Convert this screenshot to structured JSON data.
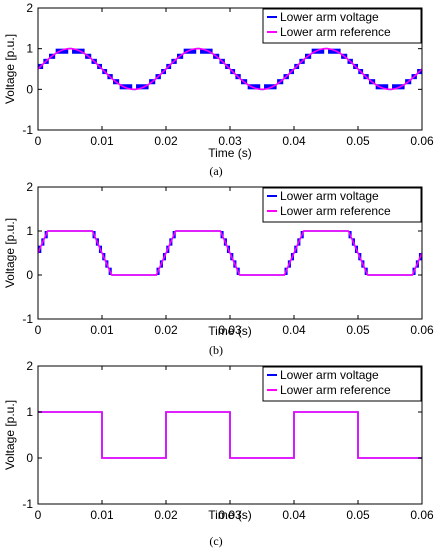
{
  "colors": {
    "voltage": "#0000ff",
    "reference": "#ff00ff",
    "axes": "#000000"
  },
  "chart_data": [
    {
      "type": "line",
      "caption": "(a)",
      "xlabel": "Time (s)",
      "ylabel": "Voltage [p.u.]",
      "xlim": [
        0,
        0.06
      ],
      "ylim": [
        -1,
        2
      ],
      "x_ticks": [
        "0",
        "0.01",
        "0.02",
        "0.03",
        "0.04",
        "0.05",
        "0.06"
      ],
      "y_ticks": [
        "-1",
        "0",
        "1",
        "2"
      ],
      "grid": false,
      "legend_position": "top-right",
      "waveform": "sine",
      "period": 0.02,
      "levels": 8,
      "series": [
        {
          "name": "Lower arm voltage",
          "color": "#0000ff",
          "description_values": {
            "min": 0,
            "max": 1
          }
        },
        {
          "name": "Lower arm reference",
          "color": "#ff00ff",
          "x": [
            0,
            0.005,
            0.015,
            0.025,
            0.035,
            0.045,
            0.055,
            0.06
          ],
          "y": [
            0.5,
            1,
            0,
            1,
            0,
            1,
            0,
            0.5
          ]
        }
      ]
    },
    {
      "type": "line",
      "caption": "(b)",
      "xlabel": "Time (s)",
      "ylabel": "Voltage [p.u.]",
      "xlim": [
        0,
        0.06
      ],
      "ylim": [
        -1,
        2
      ],
      "x_ticks": [
        "0",
        "0.01",
        "0.02",
        "0.03",
        "0.04",
        "0.05",
        "0.06"
      ],
      "y_ticks": [
        "-1",
        "0",
        "1",
        "2"
      ],
      "grid": false,
      "legend_position": "top-right",
      "waveform": "trapezoid",
      "period": 0.02,
      "levels": 6,
      "series": [
        {
          "name": "Lower arm voltage",
          "color": "#0000ff"
        },
        {
          "name": "Lower arm reference",
          "color": "#ff00ff",
          "x": [
            0,
            0.0015,
            0.0085,
            0.0115,
            0.0185,
            0.0215,
            0.0285,
            0.0315,
            0.0385,
            0.0415,
            0.0485,
            0.0515,
            0.0585,
            0.06
          ],
          "y": [
            0.5,
            1,
            1,
            0,
            0,
            1,
            1,
            0,
            0,
            1,
            1,
            0,
            0,
            0.5
          ]
        }
      ]
    },
    {
      "type": "line",
      "caption": "(c)",
      "xlabel": "Time (s)",
      "ylabel": "Voltage [p.u.]",
      "xlim": [
        0,
        0.06
      ],
      "ylim": [
        -1,
        2
      ],
      "x_ticks": [
        "0",
        "0.01",
        "0.02",
        "0.03",
        "0.04",
        "0.05",
        "0.06"
      ],
      "y_ticks": [
        "-1",
        "0",
        "1",
        "2"
      ],
      "grid": false,
      "legend_position": "top-right",
      "waveform": "square",
      "period": 0.02,
      "levels": 2,
      "series": [
        {
          "name": "Lower arm voltage",
          "color": "#0000ff",
          "x": [
            0,
            0.01,
            0.01,
            0.02,
            0.02,
            0.03,
            0.03,
            0.04,
            0.04,
            0.05,
            0.05,
            0.06
          ],
          "y": [
            1,
            1,
            0,
            0,
            1,
            1,
            0,
            0,
            1,
            1,
            0,
            0
          ]
        },
        {
          "name": "Lower arm reference",
          "color": "#ff00ff",
          "x": [
            0,
            0.01,
            0.01,
            0.02,
            0.02,
            0.03,
            0.03,
            0.04,
            0.04,
            0.05,
            0.05,
            0.06
          ],
          "y": [
            1,
            1,
            0,
            0,
            1,
            1,
            0,
            0,
            1,
            1,
            0,
            0
          ]
        }
      ]
    }
  ]
}
